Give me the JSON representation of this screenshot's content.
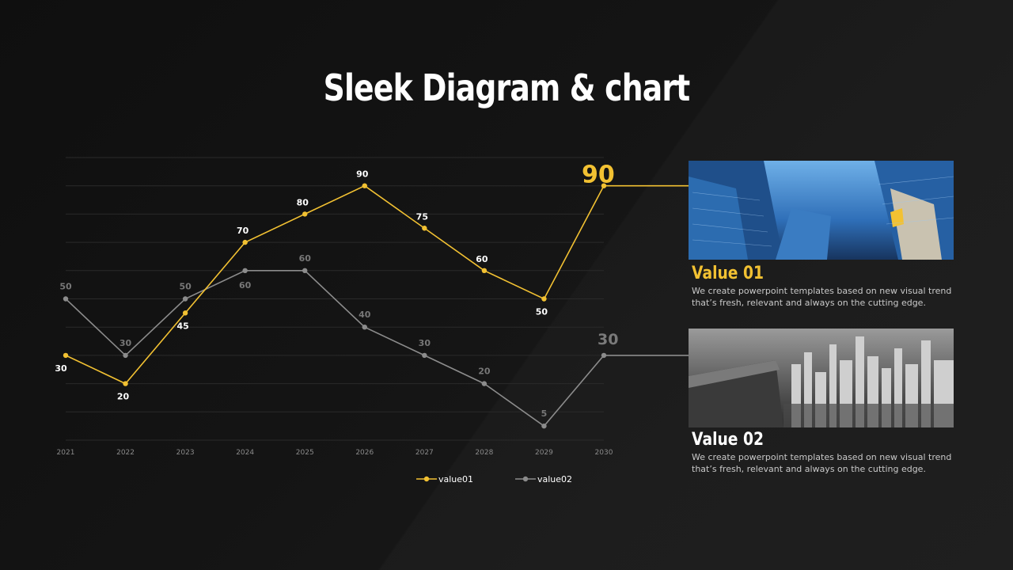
{
  "slide": {
    "title": "Sleek Diagram & chart"
  },
  "cards": [
    {
      "title": "Value 01",
      "text": "We create  powerpoint templates  based on new visual trend  that’s fresh, relevant and always on the cutting edge.",
      "image": "skyscrapers-looking-up-photo"
    },
    {
      "title": "Value 02",
      "text": "We create  powerpoint templates  based on new visual trend  that’s fresh, relevant and always on the cutting edge.",
      "image": "city-skyline-grayscale-photo"
    }
  ],
  "chart_data": {
    "type": "line",
    "x": [
      "2021",
      "2022",
      "2023",
      "2024",
      "2025",
      "2026",
      "2027",
      "2028",
      "2029",
      "2030"
    ],
    "series": [
      {
        "name": "value01",
        "values": [
          30,
          20,
          45,
          70,
          80,
          90,
          75,
          60,
          50,
          90
        ],
        "color": "#f2c132"
      },
      {
        "name": "value02",
        "values": [
          50,
          30,
          50,
          60,
          60,
          40,
          30,
          20,
          5,
          30
        ],
        "color": "#8c8c8c"
      }
    ],
    "ylim": [
      0,
      100
    ],
    "grid": true,
    "legend": "bottom",
    "end_callouts": [
      "90",
      "30"
    ]
  }
}
